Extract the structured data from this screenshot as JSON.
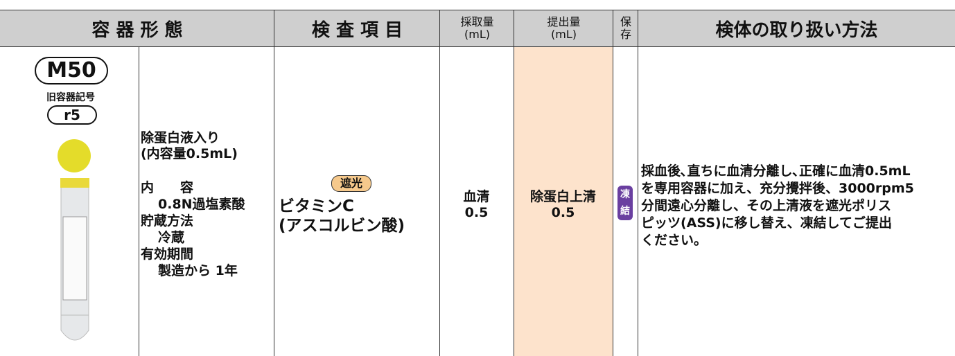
{
  "header": {
    "container": "容 器 形 態",
    "test_item": "検 査 項 目",
    "sampling": [
      "採取量",
      "(mL)"
    ],
    "submission": [
      "提出量",
      "(mL)"
    ],
    "storage": [
      "保",
      "存"
    ],
    "handling": "検体の取り扱い方法"
  },
  "row": {
    "container_code": "M50",
    "old_code_label": "旧容器記号",
    "old_code": "r5",
    "container_info": [
      "除蛋白液入り",
      "(内容量0.5mL)",
      "内　　容",
      "0.8N過塩素酸",
      "貯蔵方法",
      "冷蔵",
      "有効期間",
      "製造から 1年"
    ],
    "test_badge": "遮光",
    "test_name": [
      "ビタミンC",
      "(アスコルビン酸)"
    ],
    "sampling": [
      "血清",
      "0.5"
    ],
    "submission": [
      "除蛋白上清",
      "0.5"
    ],
    "storage": [
      "凍",
      "結"
    ],
    "handling": [
      "採血後､直ちに血清分離し､正確に血清0.5mL",
      "を専用容器に加え、充分攪拌後、3000rpm5",
      "分間遠心分離し、その上清液を遮光ポリス",
      "ピッツ(ASS)に移し替え、凍結してご提出",
      "ください。"
    ]
  }
}
